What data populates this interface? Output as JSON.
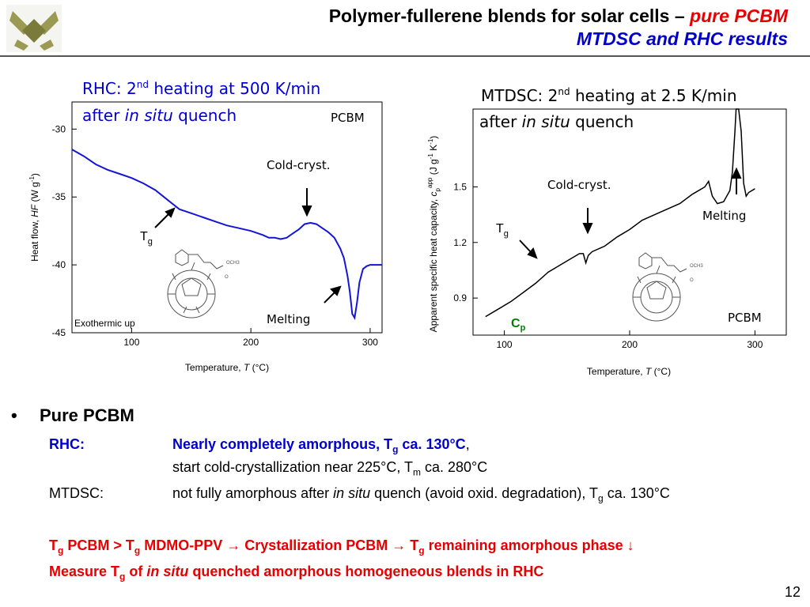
{
  "header": {
    "title_line1_black": "Polymer-fullerene blends for solar cells –",
    "title_line1_red": "pure PCBM",
    "title_line2_blue": "MTDSC and RHC results"
  },
  "colors": {
    "accent_red": "#e60000",
    "accent_blue": "#0000cc",
    "curve_blue": "#1515d6",
    "curve_black": "#000000",
    "cp_green": "#008000"
  },
  "chart_data": [
    {
      "type": "line",
      "title_line1": "RHC: 2",
      "title_sup": "nd",
      "title_line1_rest": " heating at 500 K/min",
      "title_line2_a": "after ",
      "title_line2_i": "in situ",
      "title_line2_b": " quench",
      "xlabel_a": "Temperature, ",
      "xlabel_i": "T",
      "xlabel_b": " (°C)",
      "ylabel_a": "Heat flow, ",
      "ylabel_i": "HF",
      "ylabel_b": " (W g",
      "ylabel_sup": "-1",
      "ylabel_c": ")",
      "xlim": [
        50,
        310
      ],
      "ylim": [
        -45,
        -28
      ],
      "xticks": [
        "100",
        "200",
        "300"
      ],
      "yticks": [
        "-30",
        "-35",
        "-40",
        "-45"
      ],
      "grid": false,
      "annotations": {
        "tg": "T",
        "tg_sub": "g",
        "cold": "Cold-cryst.",
        "melt": "Melting",
        "exo": "Exothermic up",
        "label": "PCBM"
      },
      "series": [
        {
          "x": [
            50,
            60,
            70,
            80,
            90,
            100,
            110,
            120,
            130,
            140,
            150,
            160,
            170,
            180,
            190,
            200,
            210,
            215,
            220,
            225,
            230,
            235,
            240,
            245,
            250,
            255,
            260,
            265,
            270,
            275,
            278,
            281,
            283,
            285,
            287,
            289,
            291,
            294,
            297,
            300,
            305,
            310
          ],
          "y": [
            -31.5,
            -32.0,
            -32.6,
            -33.0,
            -33.3,
            -33.6,
            -34.0,
            -34.5,
            -35.2,
            -35.9,
            -36.2,
            -36.5,
            -36.8,
            -37.1,
            -37.3,
            -37.5,
            -37.8,
            -38.0,
            -38.0,
            -38.1,
            -38.0,
            -37.7,
            -37.4,
            -37.0,
            -36.9,
            -37.0,
            -37.3,
            -37.6,
            -38.0,
            -38.8,
            -39.5,
            -40.8,
            -42.0,
            -43.6,
            -43.9,
            -42.8,
            -41.3,
            -40.3,
            -40.1,
            -40.0,
            -40.0,
            -40.0
          ]
        }
      ]
    },
    {
      "type": "line",
      "title_line1": "MTDSC: 2",
      "title_sup": "nd",
      "title_line1_rest": " heating at 2.5 K/min",
      "title_line2_a": "after ",
      "title_line2_i": "in situ",
      "title_line2_b": " quench",
      "xlabel_a": "Temperature, ",
      "xlabel_i": "T",
      "xlabel_b": " (°C)",
      "ylabel_a": "Apparent specific heat capacity, ",
      "ylabel_i": "c",
      "ylabel_sub": "p",
      "ylabel_sup": "app",
      "ylabel_b": " (J g",
      "ylabel_sup2": "-1",
      "ylabel_c": " K",
      "ylabel_sup3": "-1",
      "ylabel_d": ")",
      "xlim": [
        75,
        325
      ],
      "ylim": [
        0.7,
        1.92
      ],
      "xticks": [
        "100",
        "200",
        "300"
      ],
      "yticks": [
        "1.5",
        "1.2",
        "0.9"
      ],
      "grid": false,
      "annotations": {
        "tg": "T",
        "tg_sub": "g",
        "cold": "Cold-cryst.",
        "melt": "Melting",
        "cp": "C",
        "cp_sub": "p",
        "label": "PCBM"
      },
      "series": [
        {
          "x": [
            85,
            95,
            105,
            115,
            125,
            135,
            145,
            155,
            160,
            163,
            165,
            167,
            170,
            180,
            190,
            200,
            210,
            220,
            230,
            240,
            250,
            260,
            263,
            266,
            270,
            275,
            280,
            282,
            284,
            285,
            287,
            289,
            291,
            293,
            295,
            300
          ],
          "y": [
            0.8,
            0.84,
            0.88,
            0.93,
            0.98,
            1.04,
            1.08,
            1.12,
            1.14,
            1.14,
            1.09,
            1.13,
            1.15,
            1.18,
            1.23,
            1.27,
            1.32,
            1.35,
            1.38,
            1.41,
            1.46,
            1.5,
            1.53,
            1.45,
            1.41,
            1.42,
            1.48,
            1.58,
            1.8,
            1.92,
            1.92,
            1.8,
            1.52,
            1.45,
            1.47,
            1.49
          ]
        }
      ]
    }
  ],
  "bullet": {
    "head": "Pure PCBM",
    "rhc_label": "RHC:",
    "rhc_text_a": "Nearly completely amorphous, T",
    "rhc_text_sub": "g",
    "rhc_text_b": " ca. 130°C",
    "rhc_comma": ",",
    "rhc_line2_a": "start cold-crystallization near 225°C, T",
    "rhc_line2_sub": "m",
    "rhc_line2_b": " ca. 280°C",
    "mtdsc_label": "MTDSC:",
    "mtdsc_a": "not fully amorphous after ",
    "mtdsc_i": "in situ",
    "mtdsc_b": " quench (avoid oxid. degradation), T",
    "mtdsc_sub": "g",
    "mtdsc_c": " ca. 130°C",
    "red1_a": "T",
    "red1_sub1": "g",
    "red1_b": " PCBM > T",
    "red1_sub2": "g",
    "red1_c": " MDMO-PPV → Crystallization PCBM → T",
    "red1_sub3": "g",
    "red1_d": " remaining amorphous phase ↓",
    "red2_a": "Measure T",
    "red2_sub": "g",
    "red2_b": " of ",
    "red2_i": "in situ",
    "red2_c": " quenched amorphous homogeneous blends in RHC"
  },
  "page_number": "12"
}
